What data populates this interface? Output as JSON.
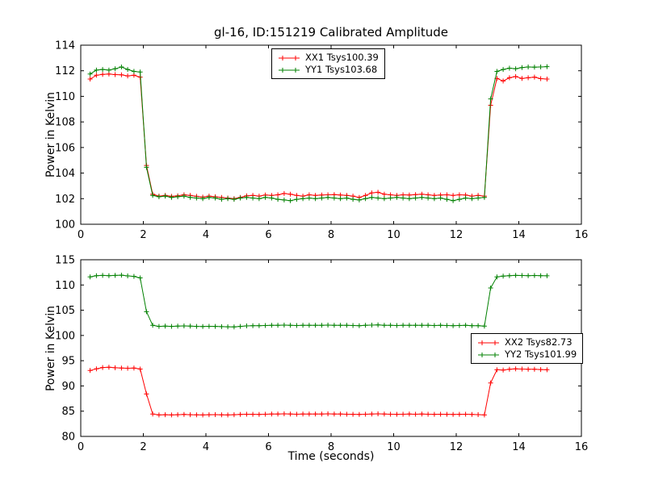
{
  "figure": {
    "title": "gl-16, ID:151219 Calibrated Amplitude"
  },
  "chart_data": [
    {
      "type": "line",
      "title": "gl-16, ID:151219 Calibrated Amplitude",
      "xlabel": "",
      "ylabel": "Power in Kelvin",
      "xlim": [
        0,
        16
      ],
      "ylim": [
        100,
        114
      ],
      "xticks": [
        0,
        2,
        4,
        6,
        8,
        10,
        12,
        14,
        16
      ],
      "yticks": [
        100,
        102,
        104,
        106,
        108,
        110,
        112,
        114
      ],
      "grid": false,
      "legend_position": "upper center",
      "x": [
        0.3,
        0.5,
        0.7,
        0.9,
        1.1,
        1.3,
        1.5,
        1.7,
        1.9,
        2.1,
        2.3,
        2.5,
        2.7,
        2.9,
        3.1,
        3.3,
        3.5,
        3.7,
        3.9,
        4.1,
        4.3,
        4.5,
        4.7,
        4.9,
        5.1,
        5.3,
        5.5,
        5.7,
        5.9,
        6.1,
        6.3,
        6.5,
        6.7,
        6.9,
        7.1,
        7.3,
        7.5,
        7.7,
        7.9,
        8.1,
        8.3,
        8.5,
        8.7,
        8.9,
        9.1,
        9.3,
        9.5,
        9.7,
        9.9,
        10.1,
        10.3,
        10.5,
        10.7,
        10.9,
        11.1,
        11.3,
        11.5,
        11.7,
        11.9,
        12.1,
        12.3,
        12.5,
        12.7,
        12.9,
        13.1,
        13.3,
        13.5,
        13.7,
        13.9,
        14.1,
        14.3,
        14.5,
        14.7,
        14.9
      ],
      "series": [
        {
          "name": "XX1 Tsys100.39",
          "color": "#ff0000",
          "marker": "+",
          "values": [
            111.35,
            111.65,
            111.72,
            111.75,
            111.7,
            111.68,
            111.6,
            111.65,
            111.5,
            104.6,
            102.35,
            102.2,
            102.25,
            102.18,
            102.22,
            102.3,
            102.25,
            102.18,
            102.12,
            102.2,
            102.15,
            102.1,
            102.05,
            102.0,
            102.1,
            102.22,
            102.25,
            102.2,
            102.28,
            102.25,
            102.3,
            102.4,
            102.35,
            102.25,
            102.2,
            102.3,
            102.25,
            102.28,
            102.3,
            102.32,
            102.28,
            102.25,
            102.2,
            102.1,
            102.25,
            102.45,
            102.5,
            102.35,
            102.3,
            102.25,
            102.3,
            102.28,
            102.32,
            102.35,
            102.3,
            102.25,
            102.28,
            102.3,
            102.25,
            102.3,
            102.28,
            102.2,
            102.25,
            102.2,
            109.3,
            111.4,
            111.2,
            111.45,
            111.55,
            111.4,
            111.45,
            111.5,
            111.38,
            111.35
          ]
        },
        {
          "name": "YY1 Tsys103.68",
          "color": "#008000",
          "marker": "+",
          "values": [
            111.75,
            112.05,
            112.1,
            112.05,
            112.15,
            112.3,
            112.1,
            111.95,
            111.9,
            104.45,
            102.25,
            102.15,
            102.2,
            102.1,
            102.15,
            102.2,
            102.1,
            102.05,
            102.0,
            102.1,
            102.05,
            101.95,
            102.0,
            101.95,
            102.05,
            102.1,
            102.05,
            102.0,
            102.1,
            102.05,
            101.95,
            101.9,
            101.85,
            101.95,
            102.0,
            102.05,
            102.0,
            102.05,
            102.1,
            102.05,
            102.0,
            102.05,
            101.95,
            101.9,
            102.0,
            102.1,
            102.05,
            102.0,
            102.05,
            102.1,
            102.05,
            102.0,
            102.05,
            102.1,
            102.05,
            102.0,
            102.05,
            101.95,
            101.85,
            101.95,
            102.05,
            102.0,
            102.05,
            102.1,
            109.8,
            111.95,
            112.1,
            112.2,
            112.15,
            112.25,
            112.3,
            112.28,
            112.3,
            112.32
          ]
        }
      ]
    },
    {
      "type": "line",
      "title": "",
      "xlabel": "Time (seconds)",
      "ylabel": "Power in Kelvin",
      "xlim": [
        0,
        16
      ],
      "ylim": [
        80,
        115
      ],
      "xticks": [
        0,
        2,
        4,
        6,
        8,
        10,
        12,
        14,
        16
      ],
      "yticks": [
        80,
        85,
        90,
        95,
        100,
        105,
        110,
        115
      ],
      "grid": false,
      "legend_position": "center right",
      "x": [
        0.3,
        0.5,
        0.7,
        0.9,
        1.1,
        1.3,
        1.5,
        1.7,
        1.9,
        2.1,
        2.3,
        2.5,
        2.7,
        2.9,
        3.1,
        3.3,
        3.5,
        3.7,
        3.9,
        4.1,
        4.3,
        4.5,
        4.7,
        4.9,
        5.1,
        5.3,
        5.5,
        5.7,
        5.9,
        6.1,
        6.3,
        6.5,
        6.7,
        6.9,
        7.1,
        7.3,
        7.5,
        7.7,
        7.9,
        8.1,
        8.3,
        8.5,
        8.7,
        8.9,
        9.1,
        9.3,
        9.5,
        9.7,
        9.9,
        10.1,
        10.3,
        10.5,
        10.7,
        10.9,
        11.1,
        11.3,
        11.5,
        11.7,
        11.9,
        12.1,
        12.3,
        12.5,
        12.7,
        12.9,
        13.1,
        13.3,
        13.5,
        13.7,
        13.9,
        14.1,
        14.3,
        14.5,
        14.7,
        14.9
      ],
      "series": [
        {
          "name": "XX2 Tsys82.73",
          "color": "#ff0000",
          "marker": "+",
          "values": [
            93.05,
            93.4,
            93.65,
            93.7,
            93.6,
            93.55,
            93.5,
            93.55,
            93.35,
            88.4,
            84.45,
            84.25,
            84.3,
            84.25,
            84.3,
            84.35,
            84.3,
            84.28,
            84.25,
            84.3,
            84.32,
            84.28,
            84.25,
            84.3,
            84.35,
            84.4,
            84.38,
            84.35,
            84.4,
            84.42,
            84.45,
            84.48,
            84.45,
            84.4,
            84.42,
            84.45,
            84.43,
            84.45,
            84.48,
            84.45,
            84.42,
            84.4,
            84.38,
            84.35,
            84.4,
            84.45,
            84.48,
            84.42,
            84.4,
            84.38,
            84.4,
            84.42,
            84.4,
            84.42,
            84.4,
            84.38,
            84.4,
            84.38,
            84.35,
            84.38,
            84.4,
            84.35,
            84.32,
            84.25,
            90.6,
            93.2,
            93.15,
            93.3,
            93.4,
            93.35,
            93.3,
            93.32,
            93.25,
            93.2
          ]
        },
        {
          "name": "YY2 Tsys101.99",
          "color": "#008000",
          "marker": "+",
          "values": [
            111.6,
            111.85,
            111.9,
            111.85,
            111.9,
            111.95,
            111.8,
            111.7,
            111.4,
            104.7,
            102.0,
            101.8,
            101.85,
            101.8,
            101.85,
            101.9,
            101.85,
            101.8,
            101.78,
            101.82,
            101.8,
            101.75,
            101.72,
            101.7,
            101.8,
            101.9,
            101.95,
            101.92,
            101.98,
            102.0,
            102.02,
            102.05,
            102.02,
            101.98,
            102.0,
            102.03,
            102.0,
            102.02,
            102.05,
            102.03,
            102.0,
            102.02,
            101.98,
            101.95,
            102.0,
            102.05,
            102.08,
            102.02,
            102.0,
            101.98,
            102.0,
            102.02,
            102.0,
            102.02,
            102.0,
            101.98,
            102.0,
            101.98,
            101.95,
            101.98,
            102.0,
            101.95,
            101.92,
            101.85,
            109.4,
            111.6,
            111.75,
            111.85,
            111.9,
            111.88,
            111.85,
            111.88,
            111.85,
            111.82
          ]
        }
      ]
    }
  ]
}
